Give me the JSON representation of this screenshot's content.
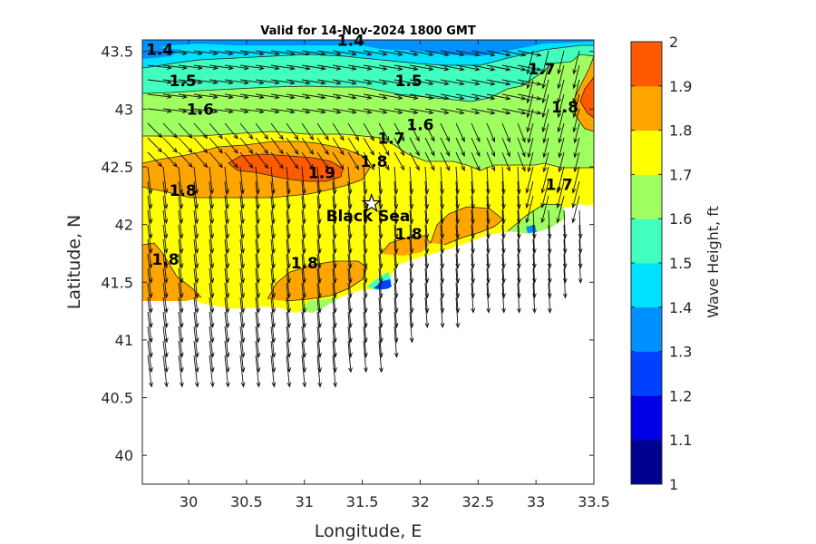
{
  "chart_data": {
    "type": "heatmap",
    "subtype": "filled-contour-map-with-vectors",
    "title": "Valid for 14-Nov-2024 1800 GMT",
    "xlabel": "Longitude, E",
    "ylabel": "Latitude, N",
    "xlim": [
      29.6,
      33.5
    ],
    "ylim": [
      39.75,
      43.6
    ],
    "xticks": [
      "30",
      "30.5",
      "31",
      "31.5",
      "32",
      "32.5",
      "33",
      "33.5"
    ],
    "xtick_values": [
      30,
      30.5,
      31,
      31.5,
      32,
      32.5,
      33,
      33.5
    ],
    "yticks": [
      "40",
      "40.5",
      "41",
      "41.5",
      "42",
      "42.5",
      "43",
      "43.5"
    ],
    "ytick_values": [
      40,
      40.5,
      41,
      41.5,
      42,
      42.5,
      43,
      43.5
    ],
    "colorbar": {
      "label": "Wave Height, ft",
      "range": [
        1,
        2
      ],
      "ticks": [
        "1",
        "1.1",
        "1.2",
        "1.3",
        "1.4",
        "1.5",
        "1.6",
        "1.7",
        "1.8",
        "1.9",
        "2"
      ],
      "colors": [
        "#00008f",
        "#0000e6",
        "#0040ff",
        "#0090ff",
        "#00e0ff",
        "#40ffbf",
        "#a0ff60",
        "#ffff00",
        "#ffa500",
        "#ff5a00"
      ]
    },
    "contour_labels": [
      {
        "text": "1.4",
        "lon": 29.75,
        "lat": 43.47
      },
      {
        "text": "1.4",
        "lon": 31.4,
        "lat": 43.55
      },
      {
        "text": "1.5",
        "lon": 29.95,
        "lat": 43.2
      },
      {
        "text": "1.5",
        "lon": 31.9,
        "lat": 43.2
      },
      {
        "text": "1.6",
        "lon": 30.1,
        "lat": 42.95
      },
      {
        "text": "1.6",
        "lon": 32.0,
        "lat": 42.82
      },
      {
        "text": "1.7",
        "lon": 31.75,
        "lat": 42.7
      },
      {
        "text": "1.7",
        "lon": 33.05,
        "lat": 43.3
      },
      {
        "text": "1.7",
        "lon": 33.2,
        "lat": 42.3
      },
      {
        "text": "1.8",
        "lon": 31.6,
        "lat": 42.5
      },
      {
        "text": "1.8",
        "lon": 33.25,
        "lat": 42.97
      },
      {
        "text": "1.8",
        "lon": 29.95,
        "lat": 42.25
      },
      {
        "text": "1.8",
        "lon": 29.8,
        "lat": 41.65
      },
      {
        "text": "1.8",
        "lon": 31.0,
        "lat": 41.62
      },
      {
        "text": "1.8",
        "lon": 31.9,
        "lat": 41.87
      },
      {
        "text": "1.9",
        "lon": 31.15,
        "lat": 42.4
      }
    ],
    "annotations": [
      {
        "text": "Black Sea",
        "lon": 31.55,
        "lat": 42.03
      }
    ],
    "marker": {
      "symbol": "star",
      "lon": 31.58,
      "lat": 42.18
    }
  }
}
